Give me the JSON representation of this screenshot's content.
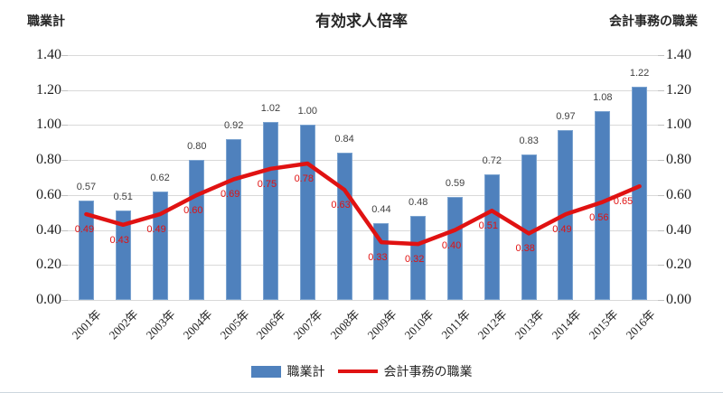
{
  "header": {
    "title": "有効求人倍率",
    "left_axis_title": "職業計",
    "right_axis_title": "会計事務の職業"
  },
  "colors": {
    "bar": "#4f81bd",
    "bar_border": "#7ba3d0",
    "line": "#e01212",
    "grid": "#d9d9d9"
  },
  "legend": {
    "items": [
      {
        "label": "職業計",
        "type": "bar"
      },
      {
        "label": "会計事務の職業",
        "type": "line"
      }
    ]
  },
  "chart_data": {
    "type": "combo_bar_line",
    "title": "有効求人倍率",
    "y_left_label": "職業計",
    "y_right_label": "会計事務の職業",
    "categories": [
      "2001年",
      "2002年",
      "2003年",
      "2004年",
      "2005年",
      "2006年",
      "2007年",
      "2008年",
      "2009年",
      "2010年",
      "2011年",
      "2012年",
      "2013年",
      "2014年",
      "2015年",
      "2016年"
    ],
    "series": [
      {
        "name": "職業計",
        "type": "bar",
        "axis": "left",
        "values": [
          0.57,
          0.51,
          0.62,
          0.8,
          0.92,
          1.02,
          1.0,
          0.84,
          0.44,
          0.48,
          0.59,
          0.72,
          0.83,
          0.97,
          1.08,
          1.22
        ]
      },
      {
        "name": "会計事務の職業",
        "type": "line",
        "axis": "right",
        "values": [
          0.49,
          0.43,
          0.49,
          0.6,
          0.69,
          0.75,
          0.78,
          0.63,
          0.33,
          0.32,
          0.4,
          0.51,
          0.38,
          0.49,
          0.56,
          0.65
        ]
      }
    ],
    "ylim": [
      0,
      1.4
    ],
    "yticks": [
      1.4,
      1.2,
      1.0,
      0.8,
      0.6,
      0.4,
      0.2,
      0.0
    ],
    "grid": true,
    "legend_position": "bottom",
    "data_labels": true
  }
}
